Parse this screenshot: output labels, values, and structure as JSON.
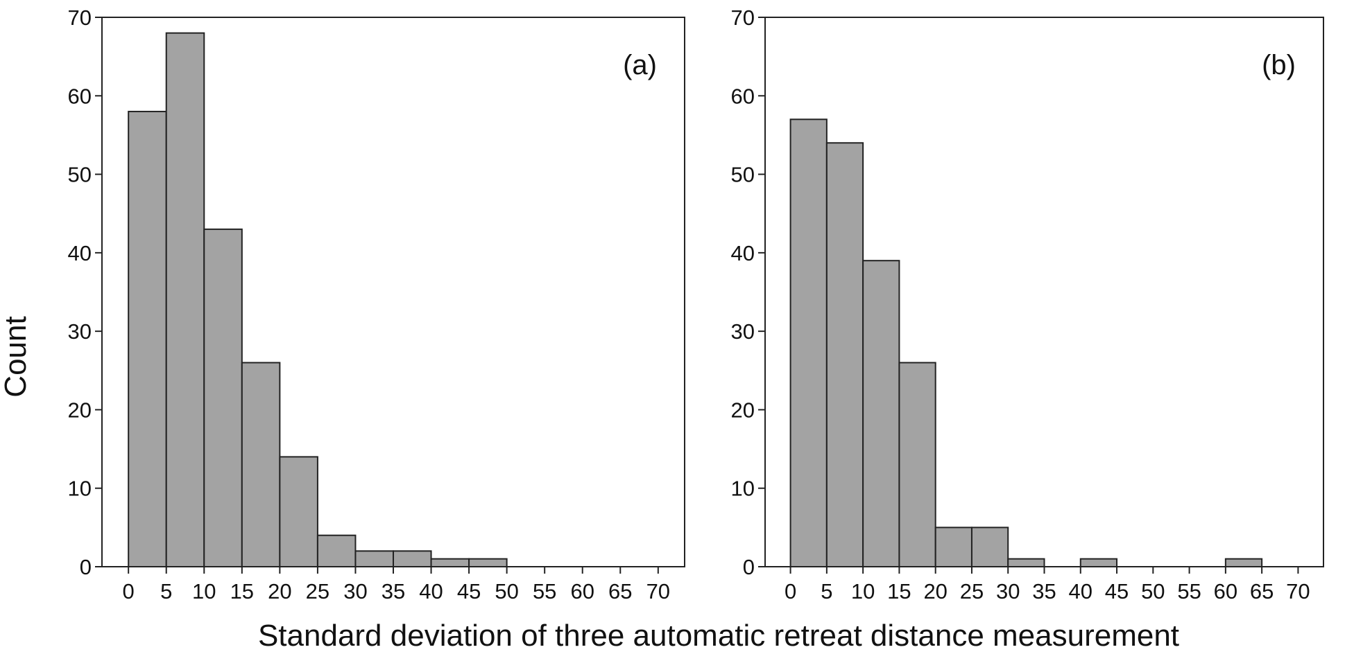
{
  "figure": {
    "ylabel": "Count",
    "xlabel": "Standard deviation of three automatic retreat distance measurement"
  },
  "colors": {
    "bar_fill": "#a3a3a3",
    "bar_edge": "#222222",
    "axis": "#222222",
    "text": "#111111"
  },
  "chart_data": [
    {
      "type": "bar",
      "panel_label": "(a)",
      "bin_edges": [
        0,
        5,
        10,
        15,
        20,
        25,
        30,
        35,
        40,
        45,
        50,
        55,
        60,
        65,
        70
      ],
      "values": [
        58,
        68,
        43,
        26,
        14,
        4,
        2,
        2,
        1,
        1,
        0,
        0,
        0,
        0
      ],
      "xticks": [
        0,
        5,
        10,
        15,
        20,
        25,
        30,
        35,
        40,
        45,
        50,
        55,
        60,
        65,
        70
      ],
      "yticks": [
        0,
        10,
        20,
        30,
        40,
        50,
        60,
        70
      ],
      "xlim": [
        -3.5,
        73.5
      ],
      "ylim": [
        0,
        70
      ],
      "grid": false
    },
    {
      "type": "bar",
      "panel_label": "(b)",
      "bin_edges": [
        0,
        5,
        10,
        15,
        20,
        25,
        30,
        35,
        40,
        45,
        50,
        55,
        60,
        65,
        70
      ],
      "values": [
        57,
        54,
        39,
        26,
        5,
        5,
        1,
        0,
        1,
        0,
        0,
        0,
        1,
        0
      ],
      "xticks": [
        0,
        5,
        10,
        15,
        20,
        25,
        30,
        35,
        40,
        45,
        50,
        55,
        60,
        65,
        70
      ],
      "yticks": [
        0,
        10,
        20,
        30,
        40,
        50,
        60,
        70
      ],
      "xlim": [
        -3.5,
        73.5
      ],
      "ylim": [
        0,
        70
      ],
      "grid": false
    }
  ]
}
